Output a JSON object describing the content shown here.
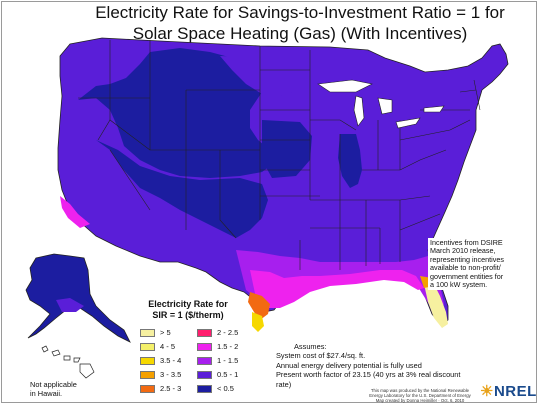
{
  "title": {
    "line1": "Electricity Rate for Savings-to-Investment Ratio = 1 for",
    "line2": "Solar Space Heating (Gas) (With Incentives)"
  },
  "legend": {
    "title_line1": "Electricity Rate for",
    "title_line2": "SIR = 1  ($/therm)",
    "items": [
      {
        "label": "> 5",
        "color": "#f6f0a0"
      },
      {
        "label": "2 - 2.5",
        "color": "#ff1e6e"
      },
      {
        "label": "4 - 5",
        "color": "#f4f06a"
      },
      {
        "label": "1.5 - 2",
        "color": "#ee22ee"
      },
      {
        "label": "3.5 - 4",
        "color": "#f6d800"
      },
      {
        "label": "1 - 1.5",
        "color": "#a71fee"
      },
      {
        "label": "3 - 3.5",
        "color": "#f5a000"
      },
      {
        "label": "0.5 - 1",
        "color": "#5a1ed8"
      },
      {
        "label": "2.5 - 3",
        "color": "#f26a12"
      },
      {
        "label": "< 0.5",
        "color": "#1c1da0"
      }
    ]
  },
  "incentives_note": {
    "lines": [
      "Incentives from DSIRE",
      "March 2010 release,",
      "representing incentives",
      "available to non-profit/",
      "government entities for",
      "a 100 kW system."
    ]
  },
  "assumptions": {
    "title": "Assumes:",
    "lines": [
      "System cost of $27.4/sq. ft.",
      "Annual energy delivery potential is fully used",
      "Present worth factor of 23.15 (40 yrs at 3% real discount rate)"
    ]
  },
  "hawaii_note": {
    "line1": "Not applicable",
    "line2": "in Hawaii."
  },
  "credit": {
    "line1": "This map was produced by the National Renewable",
    "line2": "Energy Laboratory for the U.S. Department of Energy",
    "line3": "Map created by Donna Heimiller · Oct. 6, 2010"
  },
  "logo": {
    "text": "NREL"
  },
  "colors": {
    "low": "#1c1da0",
    "mid": "#5a1ed8",
    "mid_high": "#a71fee",
    "high": "#ee22ee",
    "red": "#ff1e6e",
    "orange": "#f26a12",
    "light_orange": "#f5a000",
    "yellow": "#f6d800",
    "light_yellow": "#f4f06a",
    "pale": "#f6f0a0",
    "border": "#222222"
  }
}
